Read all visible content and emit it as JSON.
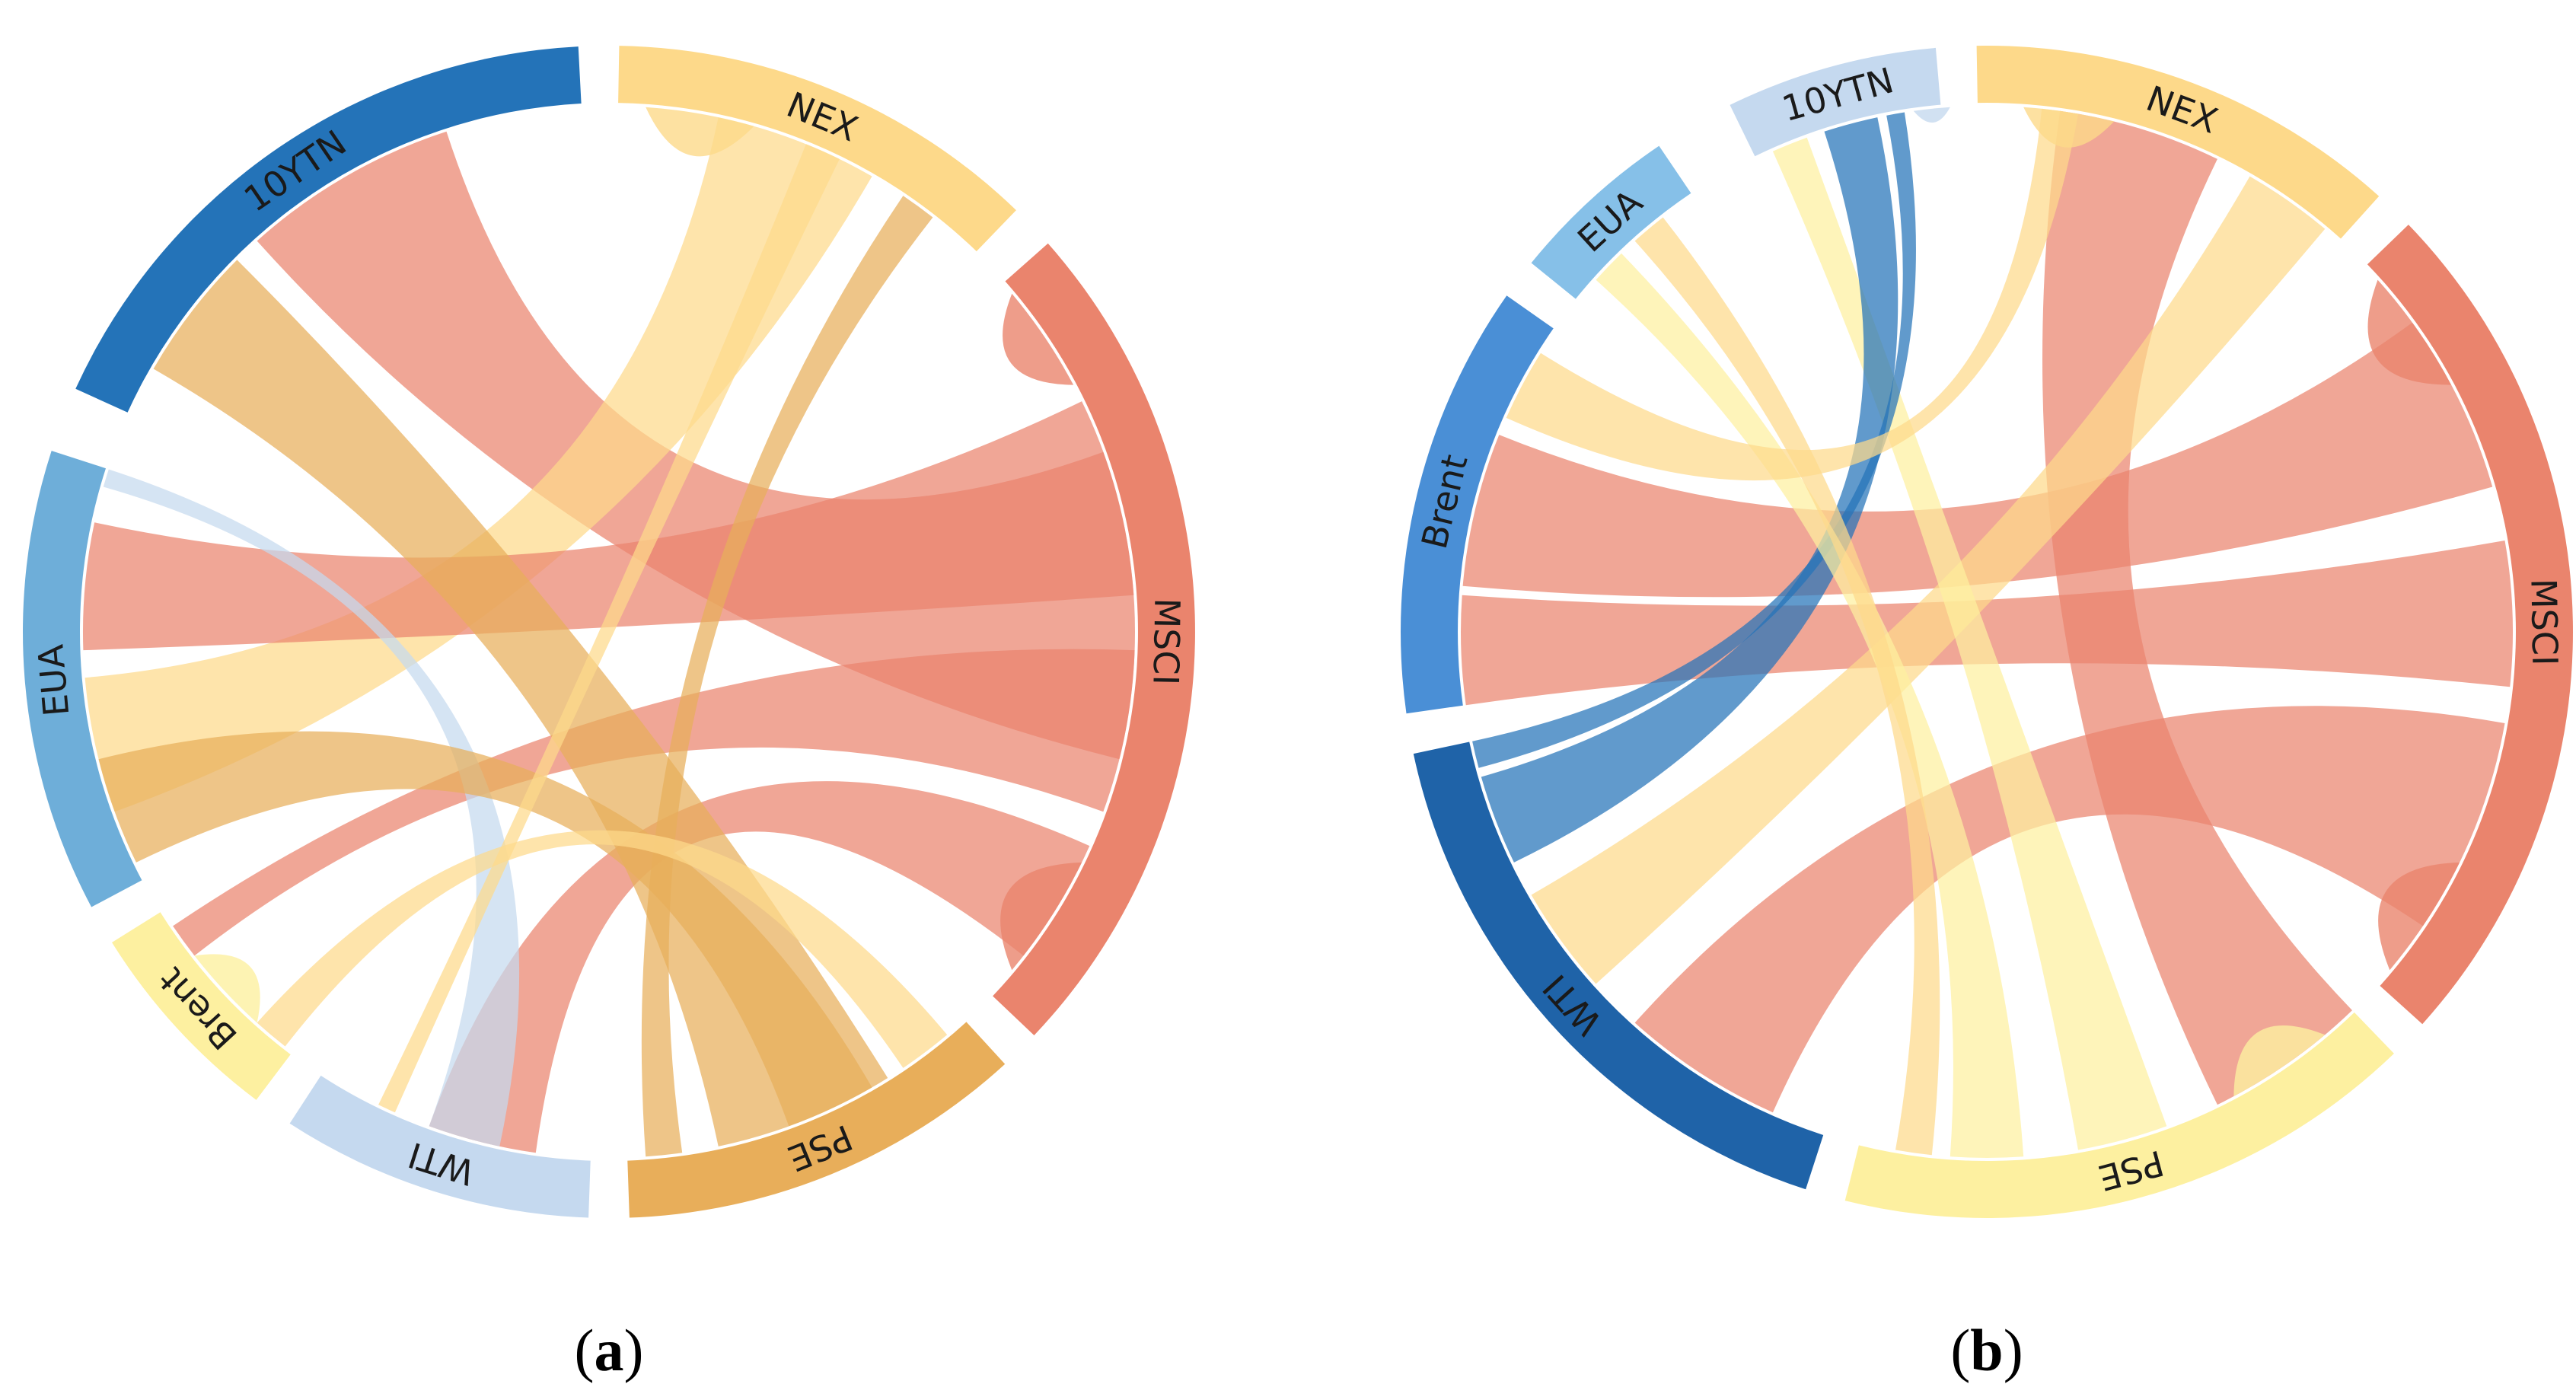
{
  "panels": [
    {
      "id": "a",
      "caption_letter": "a",
      "segments": [
        {
          "label": "10YTN",
          "start": -65.5,
          "end": -3.0,
          "color": "#2473b8"
        },
        {
          "label": "NEX",
          "start": 1.0,
          "end": 44.0,
          "color": "#fdd98a"
        },
        {
          "label": "MSCI",
          "start": 48.5,
          "end": 133.5,
          "color": "#ea846d"
        },
        {
          "label": "PSE",
          "start": 137.5,
          "end": 178.0,
          "color": "#e8ae5a"
        },
        {
          "label": "WTI",
          "start": 182.0,
          "end": 213.0,
          "color": "#c5d9ef"
        },
        {
          "label": "Brent",
          "start": 217.0,
          "end": 238.0,
          "color": "#fdf0a0"
        },
        {
          "label": "EUA",
          "start": 242.0,
          "end": 288.0,
          "color": "#6eaed9"
        }
      ],
      "chords": [
        {
          "from": [
            -42,
            -18
          ],
          "to": [
            70,
            104
          ],
          "color": "#ea846d"
        },
        {
          "from": [
            12,
            30
          ],
          "to": [
            250,
            265
          ],
          "color": "#fdd98a"
        },
        {
          "from": [
            64,
            86
          ],
          "to": [
            268,
            282
          ],
          "color": "#ea846d"
        },
        {
          "from": [
            92,
            110
          ],
          "to": [
            232,
            236
          ],
          "color": "#ea846d"
        },
        {
          "from": [
            114,
            128
          ],
          "to": [
            188,
            200
          ],
          "color": "#ea846d"
        },
        {
          "from": [
            -60,
            -45
          ],
          "to": [
            148,
            168
          ],
          "color": "#e8ae5a"
        },
        {
          "from": [
            286,
            288
          ],
          "to": [
            192,
            200
          ],
          "color": "#c5d9ef"
        },
        {
          "from": [
            244,
            256
          ],
          "to": [
            150,
            160
          ],
          "color": "#e8ae5a"
        },
        {
          "from": [
            34,
            38
          ],
          "to": [
            172,
            176
          ],
          "color": "#e8ae5a"
        },
        {
          "from": [
            22,
            26
          ],
          "to": [
            204,
            206
          ],
          "color": "#fdd98a"
        },
        {
          "from": [
            218,
            222
          ],
          "to": [
            140,
            146
          ],
          "color": "#fdd98a"
        }
      ],
      "self_loops": [
        {
          "from": [
            4,
            16
          ],
          "color": "#fdd98a"
        },
        {
          "from": [
            50,
            62
          ],
          "color": "#ea846d"
        },
        {
          "from": [
            116,
            130
          ],
          "color": "#ea846d"
        },
        {
          "from": [
            222,
            232
          ],
          "color": "#fdf0a0"
        }
      ]
    },
    {
      "id": "b",
      "caption_letter": "b",
      "segments": [
        {
          "label": "10YTN",
          "start": -26.0,
          "end": -5.0,
          "color": "#c5d9ef"
        },
        {
          "label": "NEX",
          "start": -1.0,
          "end": 42.0,
          "color": "#fdd98a"
        },
        {
          "label": "MSCI",
          "start": 46.0,
          "end": 132.0,
          "color": "#ea846d"
        },
        {
          "label": "PSE",
          "start": 136.0,
          "end": 194.0,
          "color": "#fdf0a0"
        },
        {
          "label": "WTI",
          "start": 198.0,
          "end": 258.0,
          "color": "#1f63a8"
        },
        {
          "label": "Brent",
          "start": 262.0,
          "end": 305.0,
          "color": "#4a8fd6"
        },
        {
          "label": "EUA",
          "start": 309.0,
          "end": 326.0,
          "color": "#86c0e8"
        }
      ],
      "chords": [
        {
          "from": [
            8,
            26
          ],
          "to": [
            136,
            154
          ],
          "color": "#ea846d"
        },
        {
          "from": [
            54,
            74
          ],
          "to": [
            275,
            292
          ],
          "color": "#ea846d"
        },
        {
          "from": [
            80,
            96
          ],
          "to": [
            262,
            274
          ],
          "color": "#ea846d"
        },
        {
          "from": [
            100,
            124
          ],
          "to": [
            204,
            222
          ],
          "color": "#ea846d"
        },
        {
          "from": [
            30,
            40
          ],
          "to": [
            228,
            240
          ],
          "color": "#fdd98a"
        },
        {
          "from": [
            -24,
            -20
          ],
          "to": [
            160,
            170
          ],
          "color": "#fdf0a0"
        },
        {
          "from": [
            -18,
            -12
          ],
          "to": [
            244,
            254
          ],
          "color": "#2473b8"
        },
        {
          "from": [
            -11,
            -9
          ],
          "to": [
            255,
            258
          ],
          "color": "#2473b8"
        },
        {
          "from": [
            312,
            316
          ],
          "to": [
            176,
            184
          ],
          "color": "#fdf0a0"
        },
        {
          "from": [
            318,
            322
          ],
          "to": [
            186,
            190
          ],
          "color": "#fdd98a"
        },
        {
          "from": [
            294,
            302
          ],
          "to": [
            6,
            10
          ],
          "color": "#fdd98a"
        }
      ],
      "self_loops": [
        {
          "from": [
            4,
            14
          ],
          "color": "#fdd98a"
        },
        {
          "from": [
            48,
            62
          ],
          "color": "#ea846d"
        },
        {
          "from": [
            116,
            130
          ],
          "color": "#ea846d"
        },
        {
          "from": [
            140,
            152
          ],
          "color": "#fdf0a0"
        },
        {
          "from": [
            -8,
            -4
          ],
          "color": "#c5d9ef"
        }
      ]
    }
  ]
}
